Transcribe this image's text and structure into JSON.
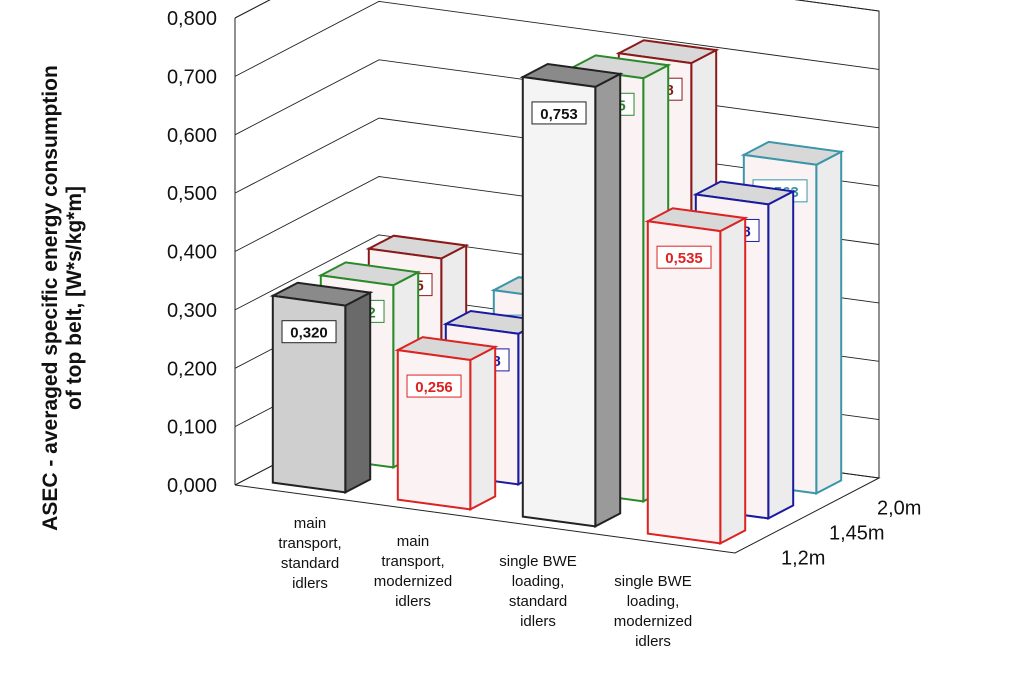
{
  "chart_data": {
    "type": "bar",
    "subtype": "3d-clustered-column",
    "ylabel": "ASEC - averaged specific energy consumption of top belt, [W*s/kg*m]",
    "ylabel_lines": [
      "ASEC - averaged specific energy consumption",
      "of top belt, [W*s/kg*m]"
    ],
    "ylim": [
      0,
      0.8
    ],
    "y_ticks": [
      "0,000",
      "0,100",
      "0,200",
      "0,300",
      "0,400",
      "0,500",
      "0,600",
      "0,700",
      "0,800"
    ],
    "categories": [
      [
        "main",
        "transport,",
        "standard",
        "idlers"
      ],
      [
        "main",
        "transport,",
        "modernized",
        "idlers"
      ],
      [
        "single BWE",
        "loading,",
        "standard",
        "idlers"
      ],
      [
        "single BWE",
        "loading,",
        "modernized",
        "idlers"
      ]
    ],
    "depth_labels": [
      "1,2m",
      "1,45m",
      "2,0m"
    ],
    "series": [
      {
        "group": "standard",
        "depth": "1,2m",
        "values": [
          0.32,
          null,
          0.753,
          null
        ],
        "labels": [
          "0,320",
          "",
          "0,753",
          ""
        ],
        "color": "#222222"
      },
      {
        "group": "standard",
        "depth": "1,45m",
        "values": [
          0.312,
          null,
          0.725,
          null
        ],
        "labels": [
          "0,312",
          "",
          "0,725",
          ""
        ],
        "color": "#2a8a2a"
      },
      {
        "group": "standard",
        "depth": "2,0m",
        "values": [
          0.315,
          null,
          0.708,
          null
        ],
        "labels": [
          "0,315",
          "",
          "0,708",
          ""
        ],
        "color": "#8a1a1a"
      },
      {
        "group": "modernized",
        "depth": "1,2m",
        "values": [
          null,
          0.256,
          null,
          0.535
        ],
        "labels": [
          "",
          "0,256",
          "",
          "0,535"
        ],
        "color": "#dd2222"
      },
      {
        "group": "modernized",
        "depth": "1,45m",
        "values": [
          null,
          0.258,
          null,
          0.538
        ],
        "labels": [
          "",
          "0,258",
          "",
          "0,538"
        ],
        "color": "#1a1aa0"
      },
      {
        "group": "modernized",
        "depth": "2,0m",
        "values": [
          null,
          0.273,
          null,
          0.563
        ],
        "labels": [
          "",
          "0,273",
          "",
          "0,563"
        ],
        "color": "#3a96a8"
      }
    ],
    "legend": "none",
    "grid": true
  },
  "colors": {
    "standard_front": "#222222",
    "standard_mid": "#2a8a2a",
    "standard_back": "#8a1a1a",
    "modern_front": "#dd2222",
    "modern_mid": "#1a1aa0",
    "modern_back": "#3a96a8",
    "grid": "#222222"
  }
}
